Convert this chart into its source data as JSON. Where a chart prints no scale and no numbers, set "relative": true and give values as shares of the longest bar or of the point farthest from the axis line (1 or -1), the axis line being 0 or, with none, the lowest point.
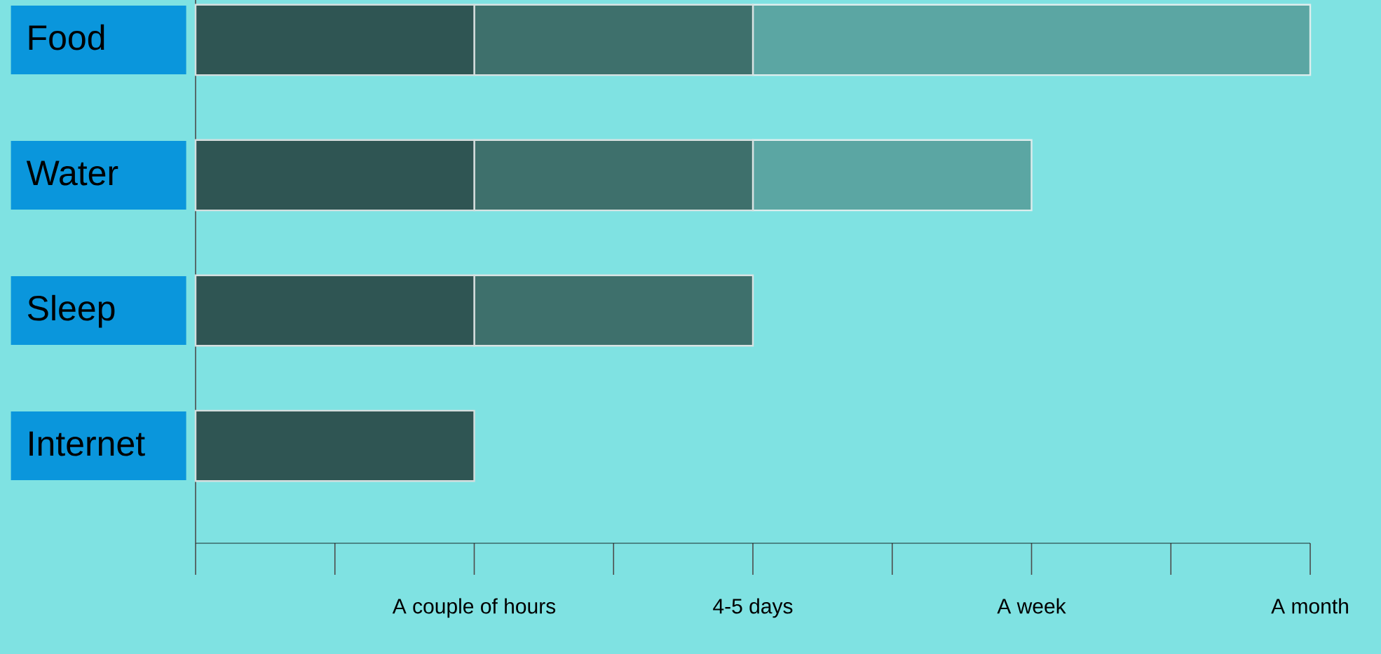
{
  "chart_data": {
    "type": "bar",
    "orientation": "horizontal",
    "stacked": true,
    "relative": true,
    "categories": [
      "Food",
      "Water",
      "Sleep",
      "Internet"
    ],
    "series": [
      {
        "color": "#2f5553",
        "values": [
          0.25,
          0.25,
          0.25,
          0.25
        ]
      },
      {
        "color": "#3e706c",
        "values": [
          0.25,
          0.25,
          0.25,
          0
        ]
      },
      {
        "color": "#5ba6a3",
        "values": [
          0.5,
          0.25,
          0,
          0
        ]
      }
    ],
    "annotations": [
      {
        "text": "A couple of hours",
        "x": 0.25
      },
      {
        "text": "4-5 days",
        "x": 0.5
      },
      {
        "text": "A week",
        "x": 0.75
      },
      {
        "text": "A month",
        "x": 1
      }
    ]
  }
}
